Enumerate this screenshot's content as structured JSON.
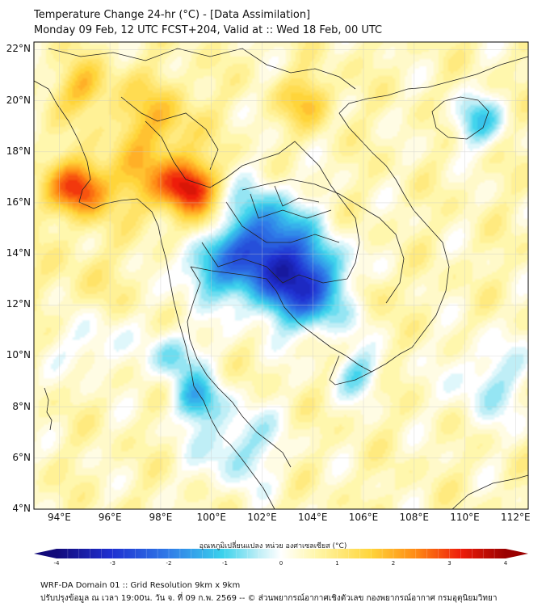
{
  "header": {
    "title": "Temperature Change 24-hr (°C) - [Data Assimilation]",
    "subtitle": "Monday 09 Feb, 12 UTC FCST+204, Valid at :: Wed 18 Feb, 00 UTC"
  },
  "axes": {
    "lat_labels": [
      "22°N",
      "20°N",
      "18°N",
      "16°N",
      "14°N",
      "12°N",
      "10°N",
      "8°N",
      "6°N",
      "4°N"
    ],
    "lat_values": [
      22,
      20,
      18,
      16,
      14,
      12,
      10,
      8,
      6,
      4
    ],
    "lon_labels": [
      "94°E",
      "96°E",
      "98°E",
      "100°E",
      "102°E",
      "104°E",
      "106°E",
      "108°E",
      "110°E",
      "112°E"
    ],
    "lon_values": [
      94,
      96,
      98,
      100,
      102,
      104,
      106,
      108,
      110,
      112
    ],
    "lon_range": [
      93,
      112.5
    ],
    "lat_range": [
      4,
      22.3
    ],
    "grid": true
  },
  "colorbar": {
    "label": "อุณหภูมิเปลี่ยนแปลง หน่วย องศาเซลเซียส (°C)",
    "ticks": [
      "-4",
      "-3",
      "-2",
      "-1",
      "0",
      "1",
      "2",
      "3",
      "4"
    ],
    "tick_values": [
      -4,
      -3,
      -2,
      -1,
      0,
      1,
      2,
      3,
      4
    ],
    "min": -4,
    "max": 4,
    "colors": [
      "#120a7a",
      "#1f2fd0",
      "#2f7be8",
      "#3ad2ec",
      "#bfeef6",
      "#ffffff",
      "#fff6a8",
      "#ffd53a",
      "#ff8a14",
      "#ee1d0a",
      "#9a0000"
    ]
  },
  "field": {
    "background_value": 0.5,
    "features": [
      {
        "lon": 94.8,
        "lat": 16.6,
        "value": 3.2,
        "r": 1.1
      },
      {
        "lon": 99.1,
        "lat": 16.6,
        "value": 3.1,
        "r": 1.1
      },
      {
        "lon": 95.0,
        "lat": 20.5,
        "value": 1.8,
        "r": 1.0
      },
      {
        "lon": 97.8,
        "lat": 19.2,
        "value": 1.7,
        "r": 1.6
      },
      {
        "lon": 103.8,
        "lat": 20.0,
        "value": 1.7,
        "r": 1.0
      },
      {
        "lon": 97.5,
        "lat": 16.8,
        "value": 1.6,
        "r": 1.3
      },
      {
        "lon": 100.0,
        "lat": 15.0,
        "value": 1.2,
        "r": 0.9
      },
      {
        "lon": 106.2,
        "lat": 12.6,
        "value": 1.2,
        "r": 0.8
      },
      {
        "lon": 95.0,
        "lat": 13.0,
        "value": 0.8,
        "r": 1.8
      },
      {
        "lon": 102.0,
        "lat": 14.8,
        "value": -1.7,
        "r": 1.7
      },
      {
        "lon": 104.0,
        "lat": 12.7,
        "value": -1.9,
        "r": 1.6
      },
      {
        "lon": 102.5,
        "lat": 13.2,
        "value": -1.4,
        "r": 1.6
      },
      {
        "lon": 100.0,
        "lat": 13.5,
        "value": -1.1,
        "r": 1.3
      },
      {
        "lon": 99.4,
        "lat": 8.3,
        "value": -1.2,
        "r": 0.9
      },
      {
        "lon": 98.6,
        "lat": 10.0,
        "value": -0.8,
        "r": 1.0
      },
      {
        "lon": 110.5,
        "lat": 19.2,
        "value": -0.9,
        "r": 1.0
      },
      {
        "lon": 101.0,
        "lat": 6.5,
        "value": -0.6,
        "r": 1.6
      },
      {
        "lon": 111.0,
        "lat": 9.0,
        "value": -0.4,
        "r": 1.6
      },
      {
        "lon": 105.8,
        "lat": 9.3,
        "value": -0.7,
        "r": 0.9
      },
      {
        "lon": 95.3,
        "lat": 10.5,
        "value": -0.3,
        "r": 1.2
      }
    ]
  },
  "footer": {
    "line1": "WRF-DA Domain 01 :: Grid Resolution 9km x 9km",
    "line2": "ปรับปรุงข้อมูล ณ เวลา 19:00น. วัน จ. ที่ 09 ก.พ. 2569 -- © ส่วนพยากรณ์อากาศเชิงตัวเลข กองพยากรณ์อากาศ กรมอุตุนิยมวิทยา"
  }
}
